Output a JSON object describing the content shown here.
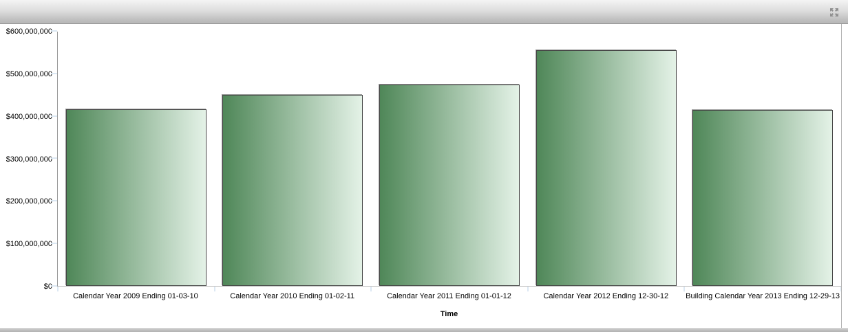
{
  "panel": {
    "header_icon": "maximize-restore-icon",
    "header_icon_color": "#8f8f8f"
  },
  "chart_data": {
    "type": "bar",
    "title": "",
    "xlabel": "Time",
    "ylabel": "",
    "categories": [
      "Calendar Year 2009 Ending 01-03-10",
      "Calendar Year 2010 Ending 01-02-11",
      "Calendar Year 2011 Ending 01-01-12",
      "Calendar Year 2012 Ending 12-30-12",
      "Building Calendar Year 2013 Ending 12-29-13"
    ],
    "values": [
      416000000,
      450000000,
      474000000,
      555000000,
      414000000
    ],
    "ylim": [
      0,
      600000000
    ],
    "yticks": [
      0,
      100000000,
      200000000,
      300000000,
      400000000,
      500000000,
      600000000
    ],
    "ytick_labels": [
      "$0",
      "$100,000,000",
      "$200,000,000",
      "$300,000,000",
      "$400,000,000",
      "$500,000,000",
      "$600,000,000"
    ],
    "grid": false,
    "legend_position": "none",
    "bar_gradient_start": "#4f8758",
    "bar_gradient_end": "#e4f2e7",
    "axis_line_color": "#9a9a9a",
    "baseline_color": "#c6c6c6",
    "tick_mark_color": "#dce8f3"
  }
}
